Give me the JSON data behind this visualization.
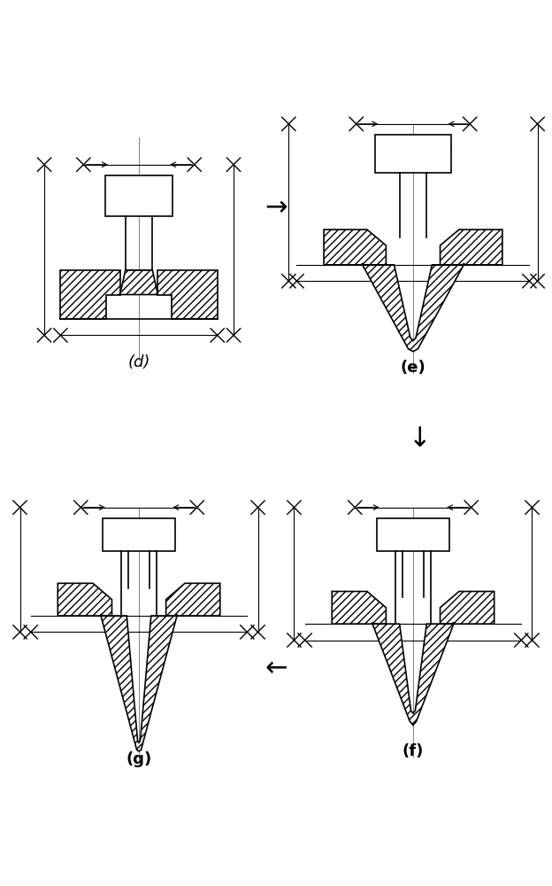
{
  "bg_color": "#ffffff",
  "line_color": "#000000",
  "hatch_pattern": "////",
  "label_d": "(d)",
  "label_e": "(e)",
  "label_f": "(f)",
  "label_g": "(g)",
  "label_fontsize": 13,
  "arrow_right": "→",
  "arrow_down": "↓",
  "arrow_left": "←"
}
